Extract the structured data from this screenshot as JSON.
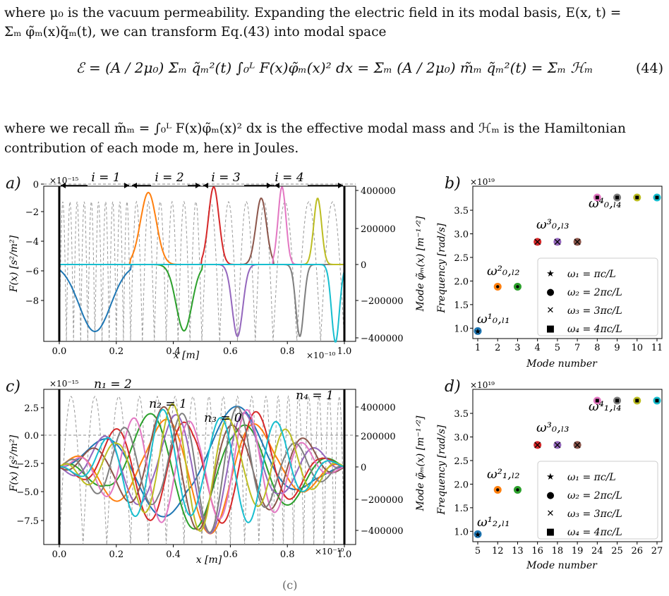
{
  "text": {
    "para1_line1": "where μ₀ is the vacuum permeability. Expanding the electric field in its modal basis, E(x, t) =",
    "para1_line2": "Σₘ φ̃ₘ(x)q̃ₘ(t), we can transform Eq.(43) into modal space",
    "equation": "ℰ = (A / 2μ₀) Σₘ q̃ₘ²(t) ∫₀ᴸ F(x)φ̃ₘ(x)² dx = Σₘ (A / 2μ₀) m̃ₘ q̃ₘ²(t) = Σₘ ℋₘ",
    "equation_number": "(44)",
    "para2_line1": "where we recall m̃ₘ = ∫₀ᴸ F(x)φ̃ₘ(x)² dx is the effective modal mass and ℋₘ is the Hamiltonian",
    "para2_line2": "contribution of each mode m, here in Joules.",
    "bottom_fragment": "(c)"
  },
  "panels": {
    "a": {
      "letter": "a)",
      "exponent": "×10⁻¹⁵",
      "x_exponent": "×10⁻¹⁰",
      "xlabel": "x [m]",
      "ylabel_left": "F(x) [s²/m²]",
      "ylabel_right": "Mode φ̃ₘ(x) [m⁻¹ᐟ²]",
      "y_ticks_left": [
        "0",
        "−2",
        "−4",
        "−6",
        "−8"
      ],
      "y_ticks_right": [
        "400000",
        "200000",
        "0",
        "−200000",
        "−400000"
      ],
      "x_ticks": [
        "0.0",
        "0.2",
        "0.4",
        "0.6",
        "0.8",
        "1.0"
      ],
      "region_labels": [
        "i = 1",
        "i = 2",
        "i = 3",
        "i = 4"
      ]
    },
    "b": {
      "letter": "b)",
      "exponent": "×10¹⁹",
      "xlabel": "Mode number",
      "ylabel": "Frequency [rad/s]",
      "x_ticks": [
        "1",
        "2",
        "3",
        "4",
        "5",
        "7",
        "8",
        "9",
        "10",
        "11"
      ],
      "y_ticks": [
        "1.0",
        "1.5",
        "2.0",
        "2.5",
        "3.0",
        "3.5"
      ],
      "annotations": [
        "ω¹₀,ₗ₁",
        "ω²₀,ₗ₂",
        "ω³₀,ₗ₃",
        "ω⁴₀,ₗ₄"
      ],
      "legend": [
        "ω₁ = πc/L",
        "ω₂ = 2πc/L",
        "ω₃ = 3πc/L",
        "ω₄ = 4πc/L"
      ]
    },
    "c": {
      "letter": "c)",
      "exponent": "×10⁻¹⁵",
      "x_exponent": "×10⁻¹⁰",
      "xlabel": "x [m]",
      "ylabel_left": "F(x) [s²/m²]",
      "ylabel_right": "Mode φ̃ₘ(x) [m⁻¹ᐟ²]",
      "y_ticks_left": [
        "2.5",
        "0.0",
        "−2.5",
        "−5.0",
        "−7.5"
      ],
      "y_ticks_right": [
        "400000",
        "200000",
        "0",
        "−200000",
        "−400000"
      ],
      "x_ticks": [
        "0.0",
        "0.2",
        "0.4",
        "0.6",
        "0.8",
        "1.0"
      ],
      "region_labels": [
        "n₁ = 2",
        "n₂ = 1",
        "n₃ = 0",
        "n₄ = 1"
      ]
    },
    "d": {
      "letter": "d)",
      "exponent": "×10¹⁹",
      "xlabel": "Mode number",
      "ylabel": "Frequency [rad/s]",
      "x_ticks": [
        "5",
        "12",
        "13",
        "16",
        "18",
        "19",
        "24",
        "25",
        "26",
        "27"
      ],
      "y_ticks": [
        "1.0",
        "1.5",
        "2.0",
        "2.5",
        "3.0",
        "3.5"
      ],
      "annotations": [
        "ω¹₂,ₗ₁",
        "ω²₁,ₗ₂",
        "ω³₀,ₗ₃",
        "ω⁴₁,ₗ₄"
      ],
      "legend": [
        "ω₁ = πc/L",
        "ω₂ = 2πc/L",
        "ω₃ = 3πc/L",
        "ω₄ = 4πc/L"
      ]
    }
  },
  "chart_data": [
    {
      "panel": "b",
      "type": "scatter",
      "xlabel": "Mode number",
      "ylabel": "Frequency [rad/s]",
      "ylim": [
        0.9,
        3.8
      ],
      "points": [
        {
          "x": 1,
          "y": 0.94,
          "marker": "star",
          "color": "#1f77b4"
        },
        {
          "x": 2,
          "y": 1.88,
          "marker": "circle",
          "color": "#ff7f0e"
        },
        {
          "x": 3,
          "y": 1.88,
          "marker": "circle",
          "color": "#2ca02c"
        },
        {
          "x": 4,
          "y": 2.83,
          "marker": "x",
          "color": "#d62728"
        },
        {
          "x": 5,
          "y": 2.83,
          "marker": "x",
          "color": "#9467bd"
        },
        {
          "x": 7,
          "y": 2.83,
          "marker": "x",
          "color": "#8c564b"
        },
        {
          "x": 8,
          "y": 3.77,
          "marker": "square",
          "color": "#e377c2"
        },
        {
          "x": 9,
          "y": 3.77,
          "marker": "square",
          "color": "#7f7f7f"
        },
        {
          "x": 10,
          "y": 3.77,
          "marker": "square",
          "color": "#bcbd22"
        },
        {
          "x": 11,
          "y": 3.77,
          "marker": "square",
          "color": "#17becf"
        }
      ]
    },
    {
      "panel": "d",
      "type": "scatter",
      "xlabel": "Mode number",
      "ylabel": "Frequency [rad/s]",
      "ylim": [
        0.9,
        3.8
      ],
      "points": [
        {
          "x": 5,
          "y": 0.94,
          "marker": "star",
          "color": "#1f77b4"
        },
        {
          "x": 12,
          "y": 1.88,
          "marker": "circle",
          "color": "#ff7f0e"
        },
        {
          "x": 13,
          "y": 1.88,
          "marker": "circle",
          "color": "#2ca02c"
        },
        {
          "x": 16,
          "y": 2.83,
          "marker": "x",
          "color": "#d62728"
        },
        {
          "x": 18,
          "y": 2.83,
          "marker": "x",
          "color": "#9467bd"
        },
        {
          "x": 19,
          "y": 2.83,
          "marker": "x",
          "color": "#8c564b"
        },
        {
          "x": 24,
          "y": 3.77,
          "marker": "square",
          "color": "#e377c2"
        },
        {
          "x": 25,
          "y": 3.77,
          "marker": "square",
          "color": "#7f7f7f"
        },
        {
          "x": 26,
          "y": 3.77,
          "marker": "square",
          "color": "#bcbd22"
        },
        {
          "x": 27,
          "y": 3.77,
          "marker": "square",
          "color": "#17becf"
        }
      ]
    }
  ],
  "colors": [
    "#1f77b4",
    "#ff7f0e",
    "#2ca02c",
    "#d62728",
    "#9467bd",
    "#8c564b",
    "#e377c2",
    "#7f7f7f",
    "#bcbd22",
    "#17becf"
  ]
}
